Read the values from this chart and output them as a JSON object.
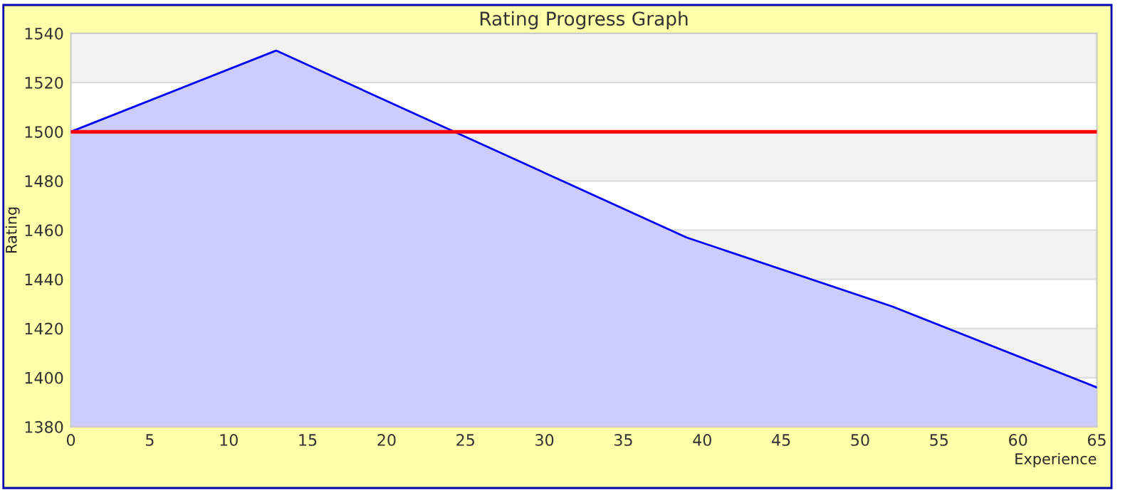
{
  "chart_data": {
    "type": "area",
    "title": "Rating Progress Graph",
    "xlabel": "Experience",
    "ylabel": "Rating",
    "x": [
      0,
      13,
      39,
      52,
      65
    ],
    "series": [
      {
        "color": "#0000ff",
        "values": [
          1500,
          1533,
          1457,
          1429,
          1396
        ]
      }
    ],
    "xlim": [
      0,
      65
    ],
    "xticks": [
      0,
      5,
      10,
      15,
      20,
      25,
      30,
      35,
      40,
      45,
      50,
      55,
      60,
      65
    ],
    "ylim": [
      1380,
      1540
    ],
    "yticks": [
      1380,
      1400,
      1420,
      1440,
      1460,
      1480,
      1500,
      1520,
      1540
    ],
    "ref_lines": [
      {
        "axis": "y",
        "value": 1500,
        "color": "#ff0000"
      }
    ],
    "grid": "y",
    "legend": false
  }
}
